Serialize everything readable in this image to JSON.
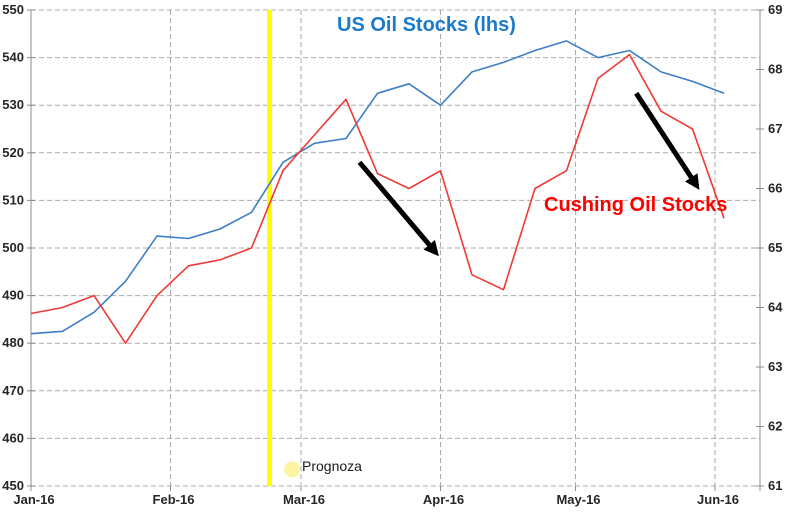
{
  "chart_data": {
    "type": "line",
    "x_axis": {
      "tick_labels": [
        "Jan-16",
        "Feb-16",
        "Mar-16",
        "Apr-16",
        "May-16",
        "Jun-16"
      ],
      "tick_days": [
        0,
        31,
        60,
        91,
        121,
        152
      ],
      "domain_days": [
        0,
        162
      ]
    },
    "y_axis_left": {
      "tick_labels": [
        "450",
        "460",
        "470",
        "480",
        "490",
        "500",
        "510",
        "520",
        "530",
        "540",
        "550"
      ],
      "tick_values": [
        450,
        460,
        470,
        480,
        490,
        500,
        510,
        520,
        530,
        540,
        550
      ],
      "min": 450,
      "max": 550
    },
    "y_axis_right": {
      "tick_labels": [
        "61",
        "62",
        "63",
        "64",
        "65",
        "66",
        "67",
        "68",
        "69"
      ],
      "tick_values": [
        61,
        62,
        63,
        64,
        65,
        66,
        67,
        68,
        69
      ],
      "min": 61,
      "max": 69
    },
    "grid": {
      "color": "#ababab",
      "dash": "5,3",
      "axis_color": "#8c8c8c"
    },
    "series": [
      {
        "name": "US Oil Stocks (lhs)",
        "axis": "left",
        "color": "#3d7ec5",
        "days": [
          0,
          7,
          14,
          21,
          28,
          35,
          42,
          49,
          56,
          63,
          70,
          77,
          84,
          91,
          98,
          105,
          112,
          119,
          126,
          133,
          140,
          147,
          154
        ],
        "values": [
          482,
          482.5,
          486.5,
          493,
          502.5,
          502,
          504,
          507.5,
          518,
          522,
          523,
          532.5,
          534.5,
          530,
          537,
          539,
          541.5,
          543.5,
          540,
          541.5,
          537,
          535,
          532.5
        ]
      },
      {
        "name": "Cushing Oil Stocks",
        "axis": "right",
        "color": "#ee3a34",
        "days": [
          0,
          7,
          14,
          21,
          28,
          35,
          42,
          49,
          56,
          63,
          70,
          77,
          84,
          91,
          98,
          105,
          112,
          119,
          126,
          133,
          140,
          147,
          154
        ],
        "values": [
          63.9,
          64.0,
          64.2,
          63.4,
          64.2,
          64.7,
          64.8,
          65.0,
          66.3,
          66.9,
          67.5,
          66.25,
          66.0,
          66.3,
          64.55,
          64.3,
          66.0,
          66.3,
          67.85,
          68.25,
          67.3,
          67.0,
          65.5
        ]
      }
    ],
    "annotations": {
      "series_labels": [
        {
          "text": "US Oil Stocks (lhs)",
          "color": "#1b7ac9"
        },
        {
          "text": "Cushing Oil Stocks",
          "color": "#fe0000"
        }
      ],
      "forecast_line": {
        "day": 53,
        "color": "#ffff00"
      },
      "prognoza": {
        "label": "Prognoza",
        "day": 58,
        "value_left": 453.5,
        "dot_color": "#fbf5a2"
      },
      "arrows": [
        {
          "from_day": 73,
          "from_left": 518,
          "to_day": 90,
          "to_left": 499
        },
        {
          "from_day": 134.5,
          "from_left": 532.5,
          "to_day": 148,
          "to_left": 513
        }
      ],
      "arrow_color": "#000000"
    }
  }
}
